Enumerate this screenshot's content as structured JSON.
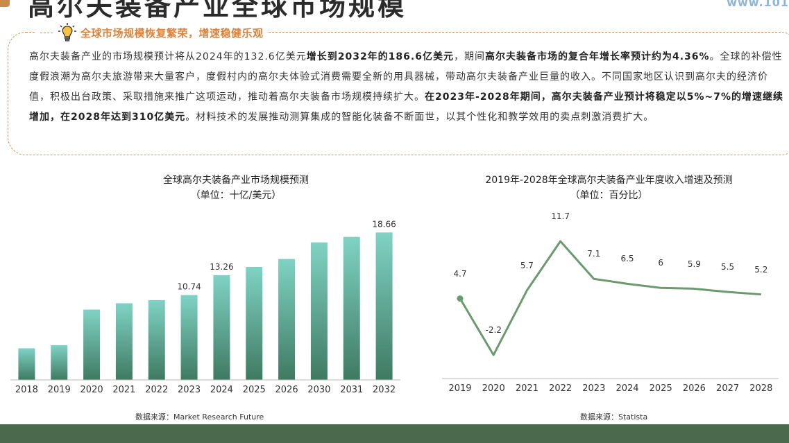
{
  "page": {
    "title": "高尔夫装备产业全球市场规模",
    "top_right_text": "www.101",
    "bottom_bar_color": "#4a6a4e"
  },
  "summary": {
    "heading": "全球市场规模恢复繁荣，增速稳健乐观",
    "accent_color": "#d9833c",
    "border_color": "#c89060",
    "paragraph_parts": [
      {
        "text": "高尔夫装备产业的市场规模预计将从2024年的132.6亿美元",
        "bold": false
      },
      {
        "text": "增长到2032年的186.6亿美元",
        "bold": true
      },
      {
        "text": "，期间",
        "bold": false
      },
      {
        "text": "高尔夫装备市场的复合年增长率预计约为4.36%",
        "bold": true
      },
      {
        "text": "。全球的补偿性度假浪潮为高尔夫旅游带来大量客户，度假村内的高尔夫体验式消费需要全新的用具器械，带动高尔夫装备产业巨量的收入。不同国家地区认识到高尔夫的经济价值，积极出台政策、采取措施来推广这项运动，推动着高尔夫装备市场规模持续扩大。",
        "bold": false
      },
      {
        "text": "在2023年-2028年期间，高尔夫装备产业预计将稳定以5%~7%的增速继续增加，在2028年达到310亿美元",
        "bold": true
      },
      {
        "text": "。材料技术的发展推动测算集成的智能化装备不断面世，以其个性化和教学效用的卖点刺激消费扩大。",
        "bold": false
      }
    ]
  },
  "chart_data": [
    {
      "type": "bar",
      "title": "全球高尔夫装备产业市场规模预测",
      "subtitle": "（单位：十亿/美元）",
      "categories": [
        "2018",
        "2019",
        "2020",
        "2021",
        "2022",
        "2023",
        "2024",
        "2025",
        "2026",
        "2030",
        "2031",
        "2032"
      ],
      "values": [
        4.0,
        4.4,
        8.9,
        9.7,
        10.1,
        10.74,
        13.26,
        14.3,
        15.3,
        17.4,
        18.1,
        18.66
      ],
      "data_labels": {
        "2023": "10.74",
        "2024": "13.26",
        "2032": "18.66"
      },
      "ylim": [
        0,
        20
      ],
      "grid": false,
      "legend": "none",
      "bar_color_top": "#7fd3c4",
      "bar_color_bottom": "#3f7a62",
      "source": "数据来源：Market Research Future"
    },
    {
      "type": "line",
      "title": "2019年-2028年全球高尔夫装备产业年度收入增速及预测",
      "subtitle": "（单位：百分比）",
      "categories": [
        "2019",
        "2020",
        "2021",
        "2022",
        "2023",
        "2024",
        "2025",
        "2026",
        "2027",
        "2028"
      ],
      "values": [
        4.7,
        -2.2,
        5.7,
        11.7,
        7.1,
        6.5,
        6,
        5.9,
        5.5,
        5.2
      ],
      "data_labels": [
        "4.7",
        "-2.2",
        "5.7",
        "11.7",
        "7.1",
        "6.5",
        "6",
        "5.9",
        "5.5",
        "5.2"
      ],
      "ylim": [
        -4,
        14
      ],
      "grid": false,
      "legend": "none",
      "line_color": "#6a9a6e",
      "source": "数据来源：Statista"
    }
  ]
}
